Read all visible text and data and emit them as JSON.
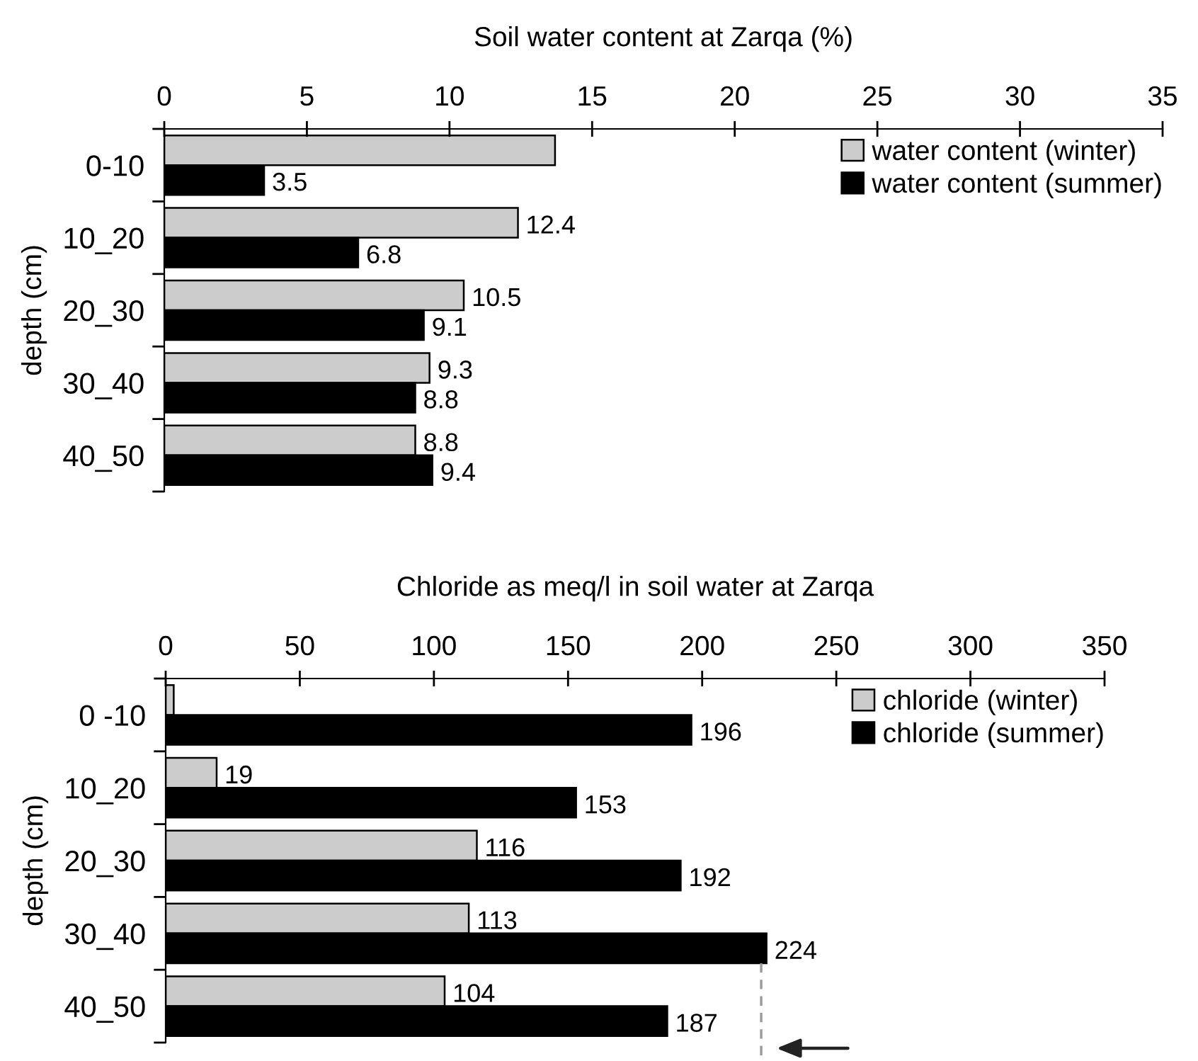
{
  "chart_data": [
    {
      "type": "bar",
      "orientation": "horizontal",
      "title": "Soil water content at Zarqa (%)",
      "ylabel": "depth (cm)",
      "categories": [
        "0-10",
        "10_20",
        "20_30",
        "30_40",
        "40_50"
      ],
      "series": [
        {
          "name": "water content (winter)",
          "color": "#cccccc",
          "values": [
            13.7,
            12.4,
            10.5,
            9.3,
            8.8
          ],
          "value_labels": [
            null,
            "12.4",
            "10.5",
            "9.3",
            "8.8"
          ]
        },
        {
          "name": "water content (summer)",
          "color": "#000000",
          "values": [
            3.5,
            6.8,
            9.1,
            8.8,
            9.4
          ],
          "value_labels": [
            "3.5",
            "6.8",
            "9.1",
            "8.8",
            "9.4"
          ]
        }
      ],
      "xlim": [
        0,
        35
      ],
      "xticks": [
        0,
        5,
        10,
        15,
        20,
        25,
        30,
        35
      ],
      "legend": "top right"
    },
    {
      "type": "bar",
      "orientation": "horizontal",
      "title": "Chloride as meq/l in soil water at Zarqa",
      "ylabel": "depth (cm)",
      "categories": [
        "0 -10",
        "10_20",
        "20_30",
        "30_40",
        "40_50"
      ],
      "series": [
        {
          "name": "chloride (winter)",
          "color": "#cccccc",
          "values": [
            3,
            19,
            116,
            113,
            104
          ],
          "value_labels": [
            null,
            "19",
            "116",
            "113",
            "104"
          ]
        },
        {
          "name": "chloride (summer)",
          "color": "#000000",
          "values": [
            196,
            153,
            192,
            224,
            187
          ],
          "value_labels": [
            "196",
            "153",
            "192",
            "224",
            "187"
          ]
        }
      ],
      "xlim": [
        0,
        350
      ],
      "xticks": [
        0,
        50,
        100,
        150,
        200,
        250,
        300,
        350
      ],
      "legend": "top right",
      "ref_lines": [
        {
          "axis": "x",
          "value": 222,
          "color": "#999999",
          "line_style": "dashed"
        }
      ]
    }
  ]
}
